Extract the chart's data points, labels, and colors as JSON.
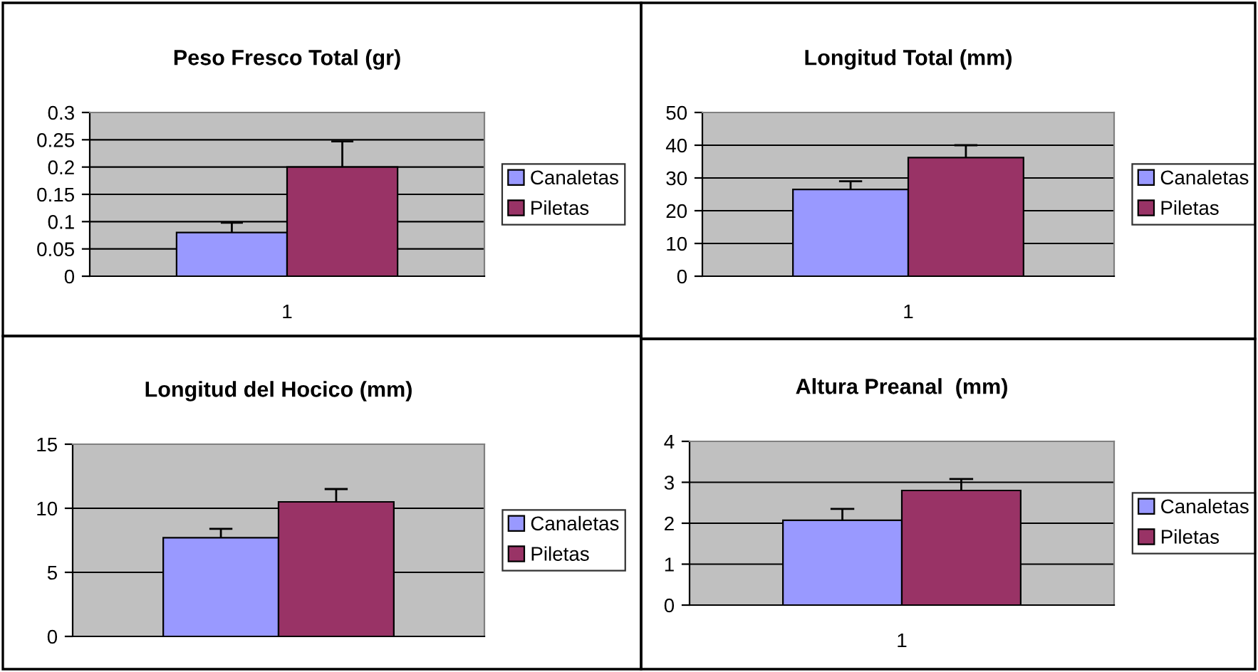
{
  "chart_data": [
    {
      "type": "bar",
      "title": "Peso Fresco Total (gr)",
      "categories": [
        "1"
      ],
      "series": [
        {
          "name": "Canaletas",
          "color": "#9999ff",
          "values": [
            0.08
          ],
          "errors": [
            [
              0.08,
              0.098
            ]
          ]
        },
        {
          "name": "Piletas",
          "color": "#993366",
          "values": [
            0.2
          ],
          "errors": [
            [
              0.2,
              0.247
            ]
          ]
        }
      ],
      "ylim": [
        0,
        0.3
      ],
      "yticks": [
        {
          "value": 0,
          "label": "0"
        },
        0.05,
        0.1,
        0.15,
        0.2,
        0.25,
        0.3
      ],
      "grid": "y",
      "legend": "right"
    },
    {
      "type": "bar",
      "title": "Longitud Total (mm)",
      "categories": [
        "1"
      ],
      "series": [
        {
          "name": "Canaletas",
          "color": "#9999ff",
          "values": [
            26.5
          ],
          "errors": [
            [
              26.5,
              29
            ]
          ]
        },
        {
          "name": "Piletas",
          "color": "#993366",
          "values": [
            36.2
          ],
          "errors": [
            [
              36.2,
              40
            ]
          ]
        }
      ],
      "ylim": [
        0,
        50
      ],
      "yticks": [
        0,
        10,
        20,
        30,
        40,
        50
      ],
      "grid": "y",
      "legend": "right"
    },
    {
      "type": "bar",
      "title": "Longitud del Hocico (mm)",
      "categories": [
        null
      ],
      "series": [
        {
          "name": "Canaletas",
          "color": "#9999ff",
          "values": [
            7.7
          ],
          "errors": [
            [
              7.7,
              8.4
            ]
          ]
        },
        {
          "name": "Piletas",
          "color": "#993366",
          "values": [
            10.5
          ],
          "errors": [
            [
              10.5,
              11.5
            ]
          ]
        }
      ],
      "ylim": [
        0,
        15
      ],
      "yticks": [
        0,
        5,
        10,
        15
      ],
      "grid": "y",
      "legend": "right"
    },
    {
      "type": "bar",
      "title": "Altura Preanal  (mm)",
      "categories": [
        "1"
      ],
      "series": [
        {
          "name": "Canaletas",
          "color": "#9999ff",
          "values": [
            2.07
          ],
          "errors": [
            [
              2.07,
              2.35
            ]
          ]
        },
        {
          "name": "Piletas",
          "color": "#993366",
          "values": [
            2.8
          ],
          "errors": [
            [
              2.8,
              3.08
            ]
          ]
        }
      ],
      "ylim": [
        0,
        4
      ],
      "yticks": [
        0,
        1,
        2,
        3,
        4
      ],
      "grid": "y",
      "legend": "right"
    }
  ]
}
